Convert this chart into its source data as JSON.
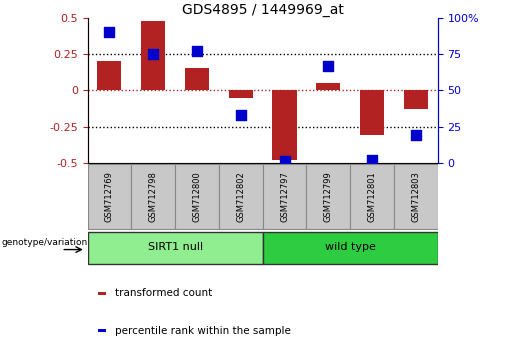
{
  "title": "GDS4895 / 1449969_at",
  "samples": [
    "GSM712769",
    "GSM712798",
    "GSM712800",
    "GSM712802",
    "GSM712797",
    "GSM712799",
    "GSM712801",
    "GSM712803"
  ],
  "transformed_count": [
    0.2,
    0.48,
    0.15,
    -0.05,
    -0.48,
    0.05,
    -0.31,
    -0.13
  ],
  "percentile_rank": [
    90,
    75,
    77,
    33,
    1,
    67,
    2,
    19
  ],
  "bar_color": "#B22222",
  "dot_color": "#0000CC",
  "ylim_left": [
    -0.5,
    0.5
  ],
  "ylim_right": [
    0,
    100
  ],
  "yticks_left": [
    -0.5,
    -0.25,
    0,
    0.25,
    0.5
  ],
  "yticks_right": [
    0,
    25,
    50,
    75,
    100
  ],
  "ytick_labels_left": [
    "-0.5",
    "-0.25",
    "0",
    "0.25",
    "0.5"
  ],
  "ytick_labels_right": [
    "0",
    "25",
    "50",
    "75",
    "100%"
  ],
  "hlines": [
    -0.25,
    0,
    0.25
  ],
  "hline_colors": [
    "black",
    "#B22222",
    "black"
  ],
  "groups": [
    {
      "label": "SIRT1 null",
      "start": 0,
      "end": 3,
      "color": "#90EE90"
    },
    {
      "label": "wild type",
      "start": 4,
      "end": 7,
      "color": "#2ECC40"
    }
  ],
  "group_label": "genotype/variation",
  "legend_items": [
    {
      "color": "#B22222",
      "label": "transformed count"
    },
    {
      "color": "#0000CC",
      "label": "percentile rank within the sample"
    }
  ],
  "bar_width": 0.55,
  "dot_size": 45,
  "box_color": "#C8C8C8",
  "box_edge_color": "#888888"
}
